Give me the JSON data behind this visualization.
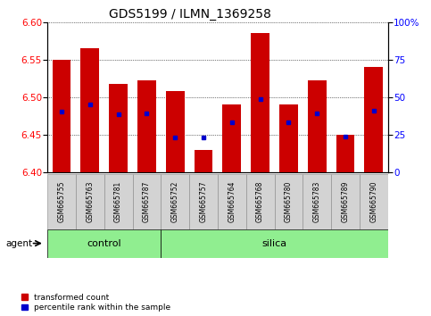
{
  "title": "GDS5199 / ILMN_1369258",
  "samples": [
    "GSM665755",
    "GSM665763",
    "GSM665781",
    "GSM665787",
    "GSM665752",
    "GSM665757",
    "GSM665764",
    "GSM665768",
    "GSM665780",
    "GSM665783",
    "GSM665789",
    "GSM665790"
  ],
  "n_control": 4,
  "n_silica": 8,
  "bar_tops": [
    6.55,
    6.565,
    6.518,
    6.522,
    6.508,
    6.43,
    6.49,
    6.585,
    6.49,
    6.522,
    6.45,
    6.54
  ],
  "percentile_vals": [
    6.481,
    6.49,
    6.477,
    6.478,
    6.446,
    6.446,
    6.466,
    6.498,
    6.467,
    6.478,
    6.447,
    6.482
  ],
  "bar_bottom": 6.4,
  "ylim_left": [
    6.4,
    6.6
  ],
  "ylim_right": [
    0,
    100
  ],
  "yticks_left": [
    6.4,
    6.45,
    6.5,
    6.55,
    6.6
  ],
  "yticks_right": [
    0,
    25,
    50,
    75,
    100
  ],
  "bar_color": "#cc0000",
  "marker_color": "#0000cc",
  "control_color": "#90ee90",
  "silica_color": "#90ee90",
  "label_bg": "#d3d3d3",
  "agent_label": "agent",
  "control_label": "control",
  "silica_label": "silica",
  "legend_red": "transformed count",
  "legend_blue": "percentile rank within the sample",
  "bar_width": 0.65,
  "title_fontsize": 10,
  "tick_fontsize": 7.5,
  "sample_fontsize": 5.5,
  "group_fontsize": 8
}
